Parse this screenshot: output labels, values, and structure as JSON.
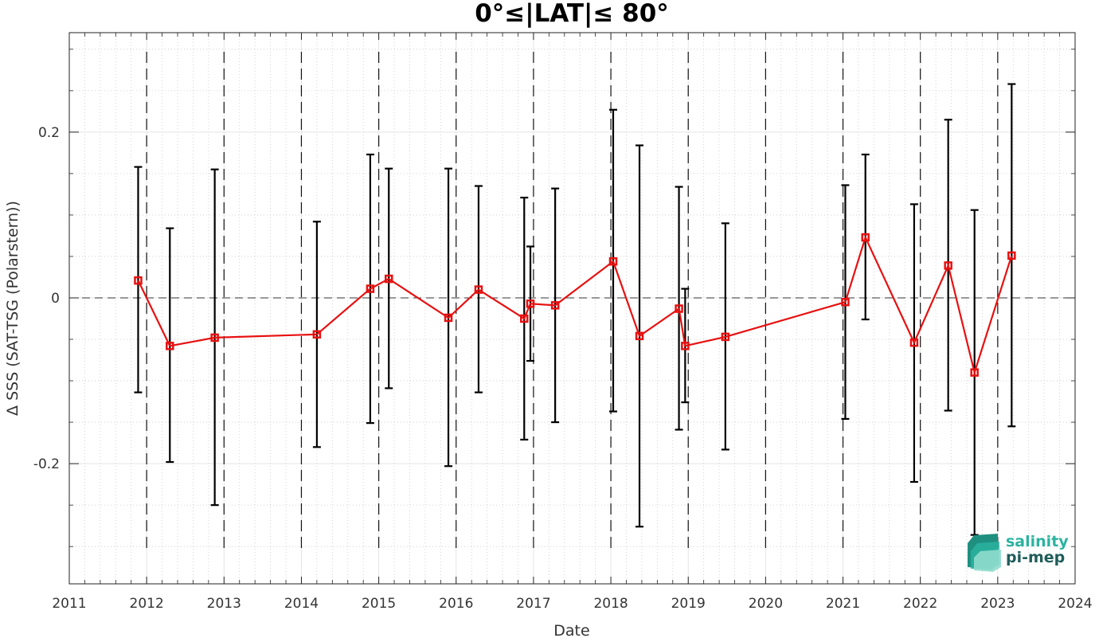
{
  "chart_data": {
    "type": "line",
    "title": "0°≤|LAT|≤ 80°",
    "xlabel": "Date",
    "ylabel": "Δ SSS (SAT-TSG (Polarstern))",
    "xlim": [
      2011,
      2024
    ],
    "ylim": [
      -0.345,
      0.32
    ],
    "x_ticks": [
      2011,
      2012,
      2013,
      2014,
      2015,
      2016,
      2017,
      2018,
      2019,
      2020,
      2021,
      2022,
      2023,
      2024
    ],
    "x_tick_labels": [
      "2011",
      "2012",
      "2013",
      "2014",
      "2015",
      "2016",
      "2017",
      "2018",
      "2019",
      "2020",
      "2021",
      "2022",
      "2023",
      "2024"
    ],
    "y_ticks": [
      -0.2,
      0,
      0.2
    ],
    "y_tick_labels": [
      "-0.2",
      "0",
      "0.2"
    ],
    "year_boundaries": [
      2012,
      2013,
      2014,
      2015,
      2016,
      2017,
      2018,
      2019,
      2020,
      2021,
      2022,
      2023
    ],
    "grid": true,
    "series": [
      {
        "color": "#e81010",
        "error_color": "#000000",
        "x": [
          2011.89,
          2012.3,
          2012.88,
          2014.2,
          2014.89,
          2015.13,
          2015.9,
          2016.29,
          2016.88,
          2016.96,
          2017.28,
          2018.03,
          2018.37,
          2018.88,
          2018.96,
          2019.48,
          2021.03,
          2021.29,
          2021.92,
          2022.36,
          2022.7,
          2023.18
        ],
        "y": [
          0.021,
          -0.058,
          -0.048,
          -0.044,
          0.011,
          0.023,
          -0.024,
          0.01,
          -0.025,
          -0.007,
          -0.009,
          0.044,
          -0.046,
          -0.013,
          -0.058,
          -0.047,
          -0.005,
          0.073,
          -0.054,
          0.039,
          -0.09,
          0.051
        ],
        "err_low": [
          -0.114,
          -0.198,
          -0.25,
          -0.18,
          -0.151,
          -0.109,
          -0.203,
          -0.114,
          -0.171,
          -0.076,
          -0.15,
          -0.137,
          -0.276,
          -0.159,
          -0.126,
          -0.183,
          -0.146,
          -0.026,
          -0.222,
          -0.136,
          -0.286,
          -0.155
        ],
        "err_high": [
          0.158,
          0.084,
          0.155,
          0.092,
          0.173,
          0.156,
          0.156,
          0.135,
          0.121,
          0.062,
          0.132,
          0.227,
          0.184,
          0.134,
          0.011,
          0.09,
          0.136,
          0.173,
          0.113,
          0.215,
          0.106,
          0.258
        ]
      }
    ]
  },
  "logo": {
    "line1": "salinity",
    "line2": "pi-mep"
  }
}
